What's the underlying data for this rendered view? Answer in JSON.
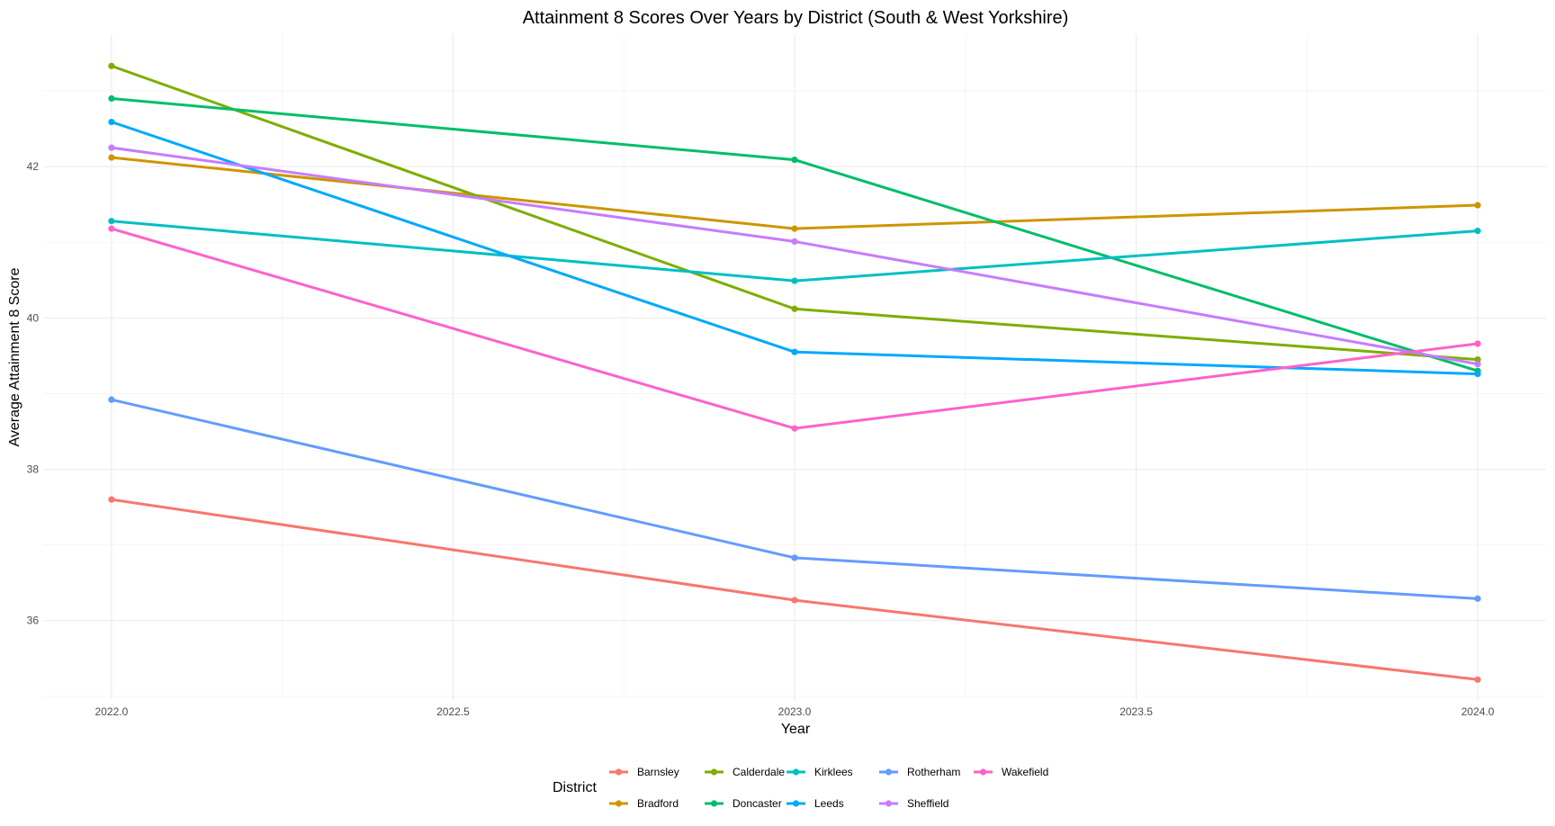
{
  "chart_data": {
    "type": "line",
    "title": "Attainment 8 Scores Over Years by District (South & West Yorkshire)",
    "xlabel": "Year",
    "ylabel": "Average Attainment 8 Score",
    "x": [
      2022.0,
      2023.0,
      2024.0
    ],
    "xlim": [
      2021.9,
      2024.1
    ],
    "ylim": [
      34.95,
      43.75
    ],
    "x_ticks": [
      2022.0,
      2022.5,
      2023.0,
      2023.5,
      2024.0
    ],
    "x_tick_labels": [
      "2022.0",
      "2022.5",
      "2023.0",
      "2023.5",
      "2024.0"
    ],
    "y_ticks": [
      36,
      38,
      40,
      42
    ],
    "y_tick_labels": [
      "36",
      "38",
      "40",
      "42"
    ],
    "grid": true,
    "legend": {
      "title": "District",
      "position": "bottom"
    },
    "series": [
      {
        "name": "Barnsley",
        "color": "#F8766D",
        "values": [
          37.6,
          36.27,
          35.22
        ]
      },
      {
        "name": "Bradford",
        "color": "#CD9600",
        "values": [
          42.12,
          41.18,
          41.49
        ]
      },
      {
        "name": "Calderdale",
        "color": "#7CAE00",
        "values": [
          43.33,
          40.12,
          39.45
        ]
      },
      {
        "name": "Doncaster",
        "color": "#00BE67",
        "values": [
          42.9,
          42.09,
          39.3
        ]
      },
      {
        "name": "Kirklees",
        "color": "#00BFC4",
        "values": [
          41.28,
          40.49,
          41.15
        ]
      },
      {
        "name": "Leeds",
        "color": "#00A9FF",
        "values": [
          42.59,
          39.55,
          39.26
        ]
      },
      {
        "name": "Rotherham",
        "color": "#619CFF",
        "values": [
          38.92,
          36.83,
          36.29
        ]
      },
      {
        "name": "Sheffield",
        "color": "#C77CFF",
        "values": [
          42.25,
          41.01,
          39.39
        ]
      },
      {
        "name": "Wakefield",
        "color": "#FF61CC",
        "values": [
          41.18,
          38.54,
          39.66
        ]
      }
    ]
  }
}
